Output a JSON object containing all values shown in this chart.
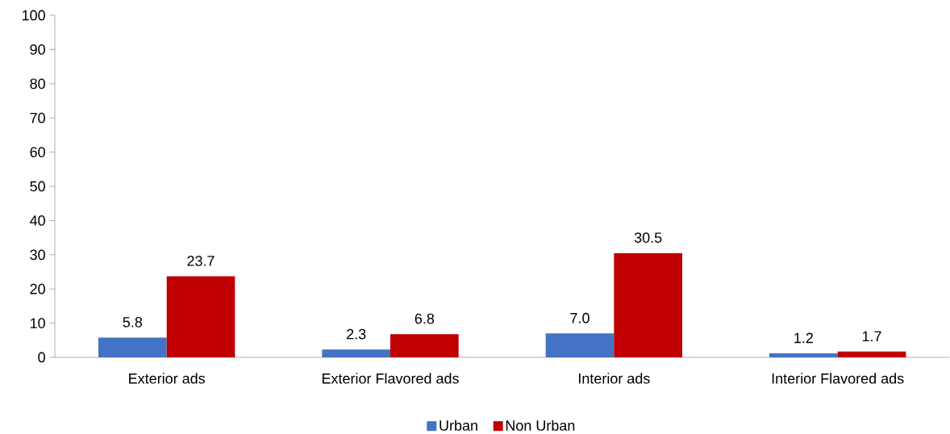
{
  "chart_data": {
    "type": "bar",
    "categories": [
      "Exterior ads",
      "Exterior Flavored ads",
      "Interior ads",
      "Interior Flavored ads"
    ],
    "series": [
      {
        "name": "Urban",
        "color": "#4472c4",
        "values": [
          5.8,
          2.3,
          7.0,
          1.2
        ],
        "value_labels": [
          "5.8",
          "2.3",
          "7.0",
          "1.2"
        ]
      },
      {
        "name": "Non Urban",
        "color": "#c00000",
        "values": [
          23.7,
          6.8,
          30.5,
          1.7
        ],
        "value_labels": [
          "23.7",
          "6.8",
          "30.5",
          "1.7"
        ]
      }
    ],
    "ylim": [
      0,
      100
    ],
    "yticks": [
      0,
      10,
      20,
      30,
      40,
      50,
      60,
      70,
      80,
      90,
      100
    ],
    "legend": "bottom",
    "grid": false
  }
}
